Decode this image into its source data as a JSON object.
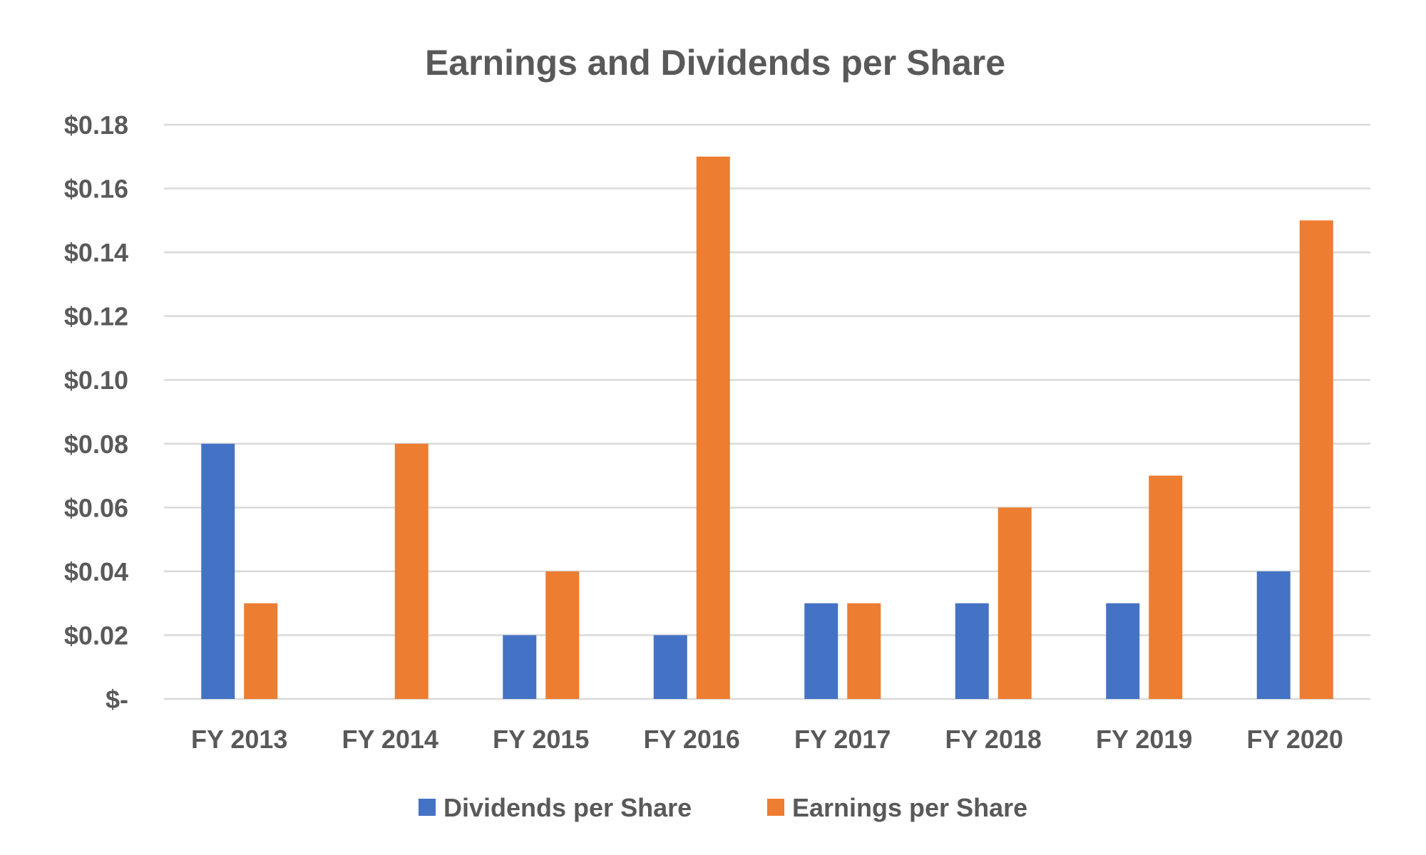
{
  "chart_data": {
    "type": "bar",
    "title": "Earnings and Dividends per Share",
    "xlabel": "",
    "ylabel": "",
    "categories": [
      "FY 2013",
      "FY 2014",
      "FY 2015",
      "FY 2016",
      "FY 2017",
      "FY 2018",
      "FY 2019",
      "FY 2020"
    ],
    "series": [
      {
        "name": "Dividends per Share",
        "color": "#4472c4",
        "values": [
          0.08,
          0,
          0.02,
          0.02,
          0.03,
          0.03,
          0.03,
          0.04
        ]
      },
      {
        "name": "Earnings per Share",
        "color": "#ed7d31",
        "values": [
          0.03,
          0.08,
          0.04,
          0.17,
          0.03,
          0.06,
          0.07,
          0.15
        ]
      }
    ],
    "ylim": [
      0,
      0.18
    ],
    "yticks": [
      0,
      0.02,
      0.04,
      0.06,
      0.08,
      0.1,
      0.12,
      0.14,
      0.16,
      0.18
    ],
    "ytick_labels": [
      "$-",
      "$0.02",
      "$0.04",
      "$0.06",
      "$0.08",
      "$0.10",
      "$0.12",
      "$0.14",
      "$0.16",
      "$0.18"
    ],
    "grid": true,
    "legend_position": "bottom",
    "text_color": "#595959",
    "grid_color": "#d9d9d9"
  }
}
